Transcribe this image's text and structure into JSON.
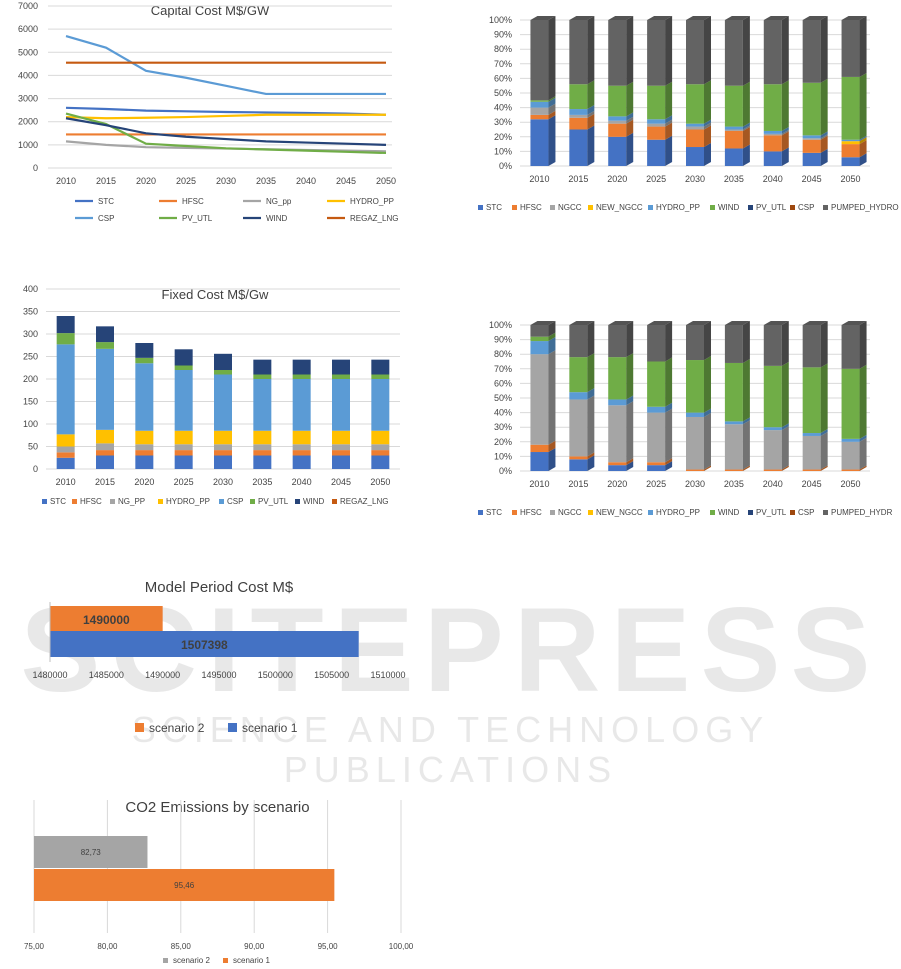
{
  "colors": {
    "STC": "#4472C4",
    "HFSC": "#ED7D31",
    "NGCC": "#A5A5A5",
    "NG_pp": "#A5A5A5",
    "NEW_NGCC": "#FFC000",
    "HYDRO_PP": "#5B9BD5",
    "WIND": "#70AD47",
    "PV_UTL": "#264478",
    "CSP": "#9E480E",
    "PUMPED_HYDRO": "#636363",
    "grid": "#d9d9d9"
  },
  "chart_data": [
    {
      "id": "capital",
      "type": "line",
      "title": "Capital Cost M$/GW",
      "x": [
        "2010",
        "2015",
        "2020",
        "2025",
        "2030",
        "2035",
        "2040",
        "2045",
        "2050"
      ],
      "ylim": [
        0,
        7000
      ],
      "yticks": [
        "0",
        "1000",
        "2000",
        "3000",
        "4000",
        "5000",
        "6000",
        "7000"
      ],
      "legend": [
        "STC",
        "HFSC",
        "NG_pp",
        "HYDRO_PP",
        "CSP",
        "PV_UTL",
        "WIND",
        "REGAZ_LNG"
      ],
      "series": [
        {
          "name": "STC",
          "color": "#4472C4",
          "values": [
            2600,
            2550,
            2480,
            2450,
            2420,
            2400,
            2380,
            2350,
            2300
          ]
        },
        {
          "name": "HFSC",
          "color": "#ED7D31",
          "values": [
            1450,
            1450,
            1450,
            1450,
            1450,
            1450,
            1450,
            1450,
            1450
          ]
        },
        {
          "name": "NG_pp",
          "color": "#A5A5A5",
          "values": [
            1150,
            1000,
            900,
            870,
            840,
            810,
            780,
            750,
            720
          ]
        },
        {
          "name": "HYDRO_PP",
          "color": "#FFC000",
          "values": [
            2200,
            2150,
            2170,
            2200,
            2250,
            2300,
            2300,
            2300,
            2300
          ]
        },
        {
          "name": "CSP",
          "color": "#5B9BD5",
          "values": [
            5700,
            5200,
            4200,
            3900,
            3550,
            3200,
            3200,
            3200,
            3200
          ]
        },
        {
          "name": "PV_UTL",
          "color": "#70AD47",
          "values": [
            2350,
            1900,
            1050,
            950,
            850,
            800,
            750,
            700,
            650
          ]
        },
        {
          "name": "WIND",
          "color": "#264478",
          "values": [
            2150,
            1850,
            1500,
            1350,
            1250,
            1150,
            1100,
            1050,
            1000
          ]
        },
        {
          "name": "REGAZ_LNG",
          "color": "#C55A11",
          "values": [
            4550,
            4550,
            4550,
            4550,
            4550,
            4550,
            4550,
            4550,
            4550
          ]
        }
      ]
    },
    {
      "id": "share1",
      "type": "bar",
      "stacked_percent": true,
      "title": "",
      "x": [
        "2010",
        "2015",
        "2020",
        "2025",
        "2030",
        "2035",
        "2040",
        "2045",
        "2050"
      ],
      "yticks": [
        "0%",
        "10%",
        "20%",
        "30%",
        "40%",
        "50%",
        "60%",
        "70%",
        "80%",
        "90%",
        "100%"
      ],
      "legend": [
        "STC",
        "HFSC",
        "NGCC",
        "NEW_NGCC",
        "HYDRO_PP",
        "WIND",
        "PV_UTL",
        "CSP",
        "PUMPED_HYDRO"
      ],
      "series": [
        {
          "name": "STC",
          "color": "#4472C4",
          "values": [
            32,
            25,
            20,
            18,
            13,
            12,
            10,
            9,
            6
          ]
        },
        {
          "name": "HFSC",
          "color": "#ED7D31",
          "values": [
            3,
            8,
            9,
            9,
            12,
            12,
            11,
            9,
            9
          ]
        },
        {
          "name": "NGCC",
          "color": "#A5A5A5",
          "values": [
            5,
            2,
            2,
            2,
            2,
            1,
            1,
            1,
            0
          ]
        },
        {
          "name": "NEW_NGCC",
          "color": "#FFC000",
          "values": [
            0,
            0,
            0,
            0,
            0,
            0,
            0,
            0,
            2
          ]
        },
        {
          "name": "HYDRO_PP",
          "color": "#5B9BD5",
          "values": [
            4,
            4,
            3,
            3,
            2,
            2,
            2,
            2,
            1
          ]
        },
        {
          "name": "WIND",
          "color": "#70AD47",
          "values": [
            1,
            17,
            21,
            23,
            27,
            28,
            32,
            36,
            43
          ]
        },
        {
          "name": "PV_UTL",
          "color": "#264478",
          "values": [
            0,
            0,
            0,
            0,
            0,
            0,
            0,
            0,
            0
          ]
        },
        {
          "name": "CSP",
          "color": "#9E480E",
          "values": [
            0,
            0,
            0,
            0,
            0,
            0,
            0,
            0,
            0
          ]
        },
        {
          "name": "PUMPED_HYDRO",
          "color": "#636363",
          "values": [
            55,
            44,
            45,
            45,
            44,
            45,
            44,
            43,
            39
          ]
        }
      ]
    },
    {
      "id": "fixed",
      "type": "bar",
      "stacked": true,
      "title": "Fixed Cost M$/Gw",
      "x": [
        "2010",
        "2015",
        "2020",
        "2025",
        "2030",
        "2035",
        "2040",
        "2045",
        "2050"
      ],
      "ylim": [
        0,
        400
      ],
      "yticks": [
        "0",
        "50",
        "100",
        "150",
        "200",
        "250",
        "300",
        "350",
        "400"
      ],
      "legend": [
        "STC",
        "HFSC",
        "NG_PP",
        "HYDRO_PP",
        "CSP",
        "PV_UTL",
        "WIND",
        "REGAZ_LNG"
      ],
      "series": [
        {
          "name": "STC",
          "color": "#4472C4",
          "values": [
            25,
            30,
            30,
            30,
            30,
            30,
            30,
            30,
            30
          ]
        },
        {
          "name": "HFSC",
          "color": "#ED7D31",
          "values": [
            12,
            12,
            12,
            12,
            12,
            12,
            12,
            12,
            12
          ]
        },
        {
          "name": "NG_PP",
          "color": "#A5A5A5",
          "values": [
            13,
            15,
            13,
            13,
            13,
            13,
            13,
            13,
            13
          ]
        },
        {
          "name": "HYDRO_PP",
          "color": "#FFC000",
          "values": [
            27,
            30,
            30,
            30,
            30,
            30,
            30,
            30,
            30
          ]
        },
        {
          "name": "CSP",
          "color": "#5B9BD5",
          "values": [
            200,
            180,
            150,
            135,
            125,
            115,
            115,
            115,
            115
          ]
        },
        {
          "name": "PV_UTL",
          "color": "#70AD47",
          "values": [
            25,
            15,
            12,
            10,
            10,
            10,
            10,
            10,
            10
          ]
        },
        {
          "name": "WIND",
          "color": "#264478",
          "values": [
            38,
            35,
            33,
            36,
            36,
            33,
            33,
            33,
            33
          ]
        },
        {
          "name": "REGAZ_LNG",
          "color": "#C55A11",
          "values": [
            0,
            0,
            0,
            0,
            0,
            0,
            0,
            0,
            0
          ]
        }
      ]
    },
    {
      "id": "share2",
      "type": "bar",
      "stacked_percent": true,
      "title": "",
      "x": [
        "2010",
        "2015",
        "2020",
        "2025",
        "2030",
        "2035",
        "2040",
        "2045",
        "2050"
      ],
      "yticks": [
        "0%",
        "10%",
        "20%",
        "30%",
        "40%",
        "50%",
        "60%",
        "70%",
        "80%",
        "90%",
        "100%"
      ],
      "legend": [
        "STC",
        "HFSC",
        "NGCC",
        "NEW_NGCC",
        "HYDRO_PP",
        "WIND",
        "PV_UTL",
        "CSP",
        "PUMPED_HYDR"
      ],
      "series": [
        {
          "name": "STC",
          "color": "#4472C4",
          "values": [
            13,
            8,
            4,
            4,
            0,
            0,
            0,
            0,
            0
          ]
        },
        {
          "name": "HFSC",
          "color": "#ED7D31",
          "values": [
            5,
            2,
            2,
            2,
            1,
            1,
            1,
            1,
            1
          ]
        },
        {
          "name": "NGCC",
          "color": "#A5A5A5",
          "values": [
            62,
            39,
            39,
            34,
            36,
            31,
            27,
            23,
            19
          ]
        },
        {
          "name": "NEW_NGCC",
          "color": "#FFC000",
          "values": [
            0,
            0,
            0,
            0,
            0,
            0,
            0,
            0,
            0
          ]
        },
        {
          "name": "HYDRO_PP",
          "color": "#5B9BD5",
          "values": [
            9,
            5,
            4,
            4,
            3,
            2,
            2,
            2,
            2
          ]
        },
        {
          "name": "WIND",
          "color": "#70AD47",
          "values": [
            3,
            24,
            29,
            31,
            36,
            40,
            42,
            45,
            48
          ]
        },
        {
          "name": "PV_UTL",
          "color": "#264478",
          "values": [
            0,
            0,
            0,
            0,
            0,
            0,
            0,
            0,
            0
          ]
        },
        {
          "name": "CSP",
          "color": "#9E480E",
          "values": [
            0,
            0,
            0,
            0,
            0,
            0,
            0,
            0,
            0
          ]
        },
        {
          "name": "PUMPED_HYDRO",
          "color": "#636363",
          "values": [
            8,
            22,
            22,
            25,
            24,
            26,
            28,
            29,
            30
          ]
        }
      ]
    },
    {
      "id": "period",
      "type": "bar",
      "orientation": "horizontal",
      "title": "Model Period Cost  M$",
      "xlim": [
        1480000,
        1510000
      ],
      "xticks": [
        "1480000",
        "1485000",
        "1490000",
        "1495000",
        "1500000",
        "1505000",
        "1510000"
      ],
      "series": [
        {
          "name": "scenario 2",
          "color": "#ED7D31",
          "value": 1490000,
          "label": "1490000"
        },
        {
          "name": "scenario 1",
          "color": "#4472C4",
          "value": 1507398,
          "label": "1507398"
        }
      ],
      "legend": [
        "scenario 2",
        "scenario 1"
      ]
    },
    {
      "id": "co2",
      "type": "bar",
      "orientation": "horizontal",
      "title": "CO2 Emissions by scenario",
      "xlim": [
        75,
        100
      ],
      "xticks": [
        "75,00",
        "80,00",
        "85,00",
        "90,00",
        "95,00",
        "100,00"
      ],
      "series": [
        {
          "name": "scenario 2",
          "color": "#A5A5A5",
          "value": 82.73,
          "label": "82,73"
        },
        {
          "name": "scenario 1",
          "color": "#ED7D31",
          "value": 95.46,
          "label": "95,46"
        }
      ],
      "legend": [
        "scenario 2",
        "scenario 1"
      ]
    }
  ]
}
